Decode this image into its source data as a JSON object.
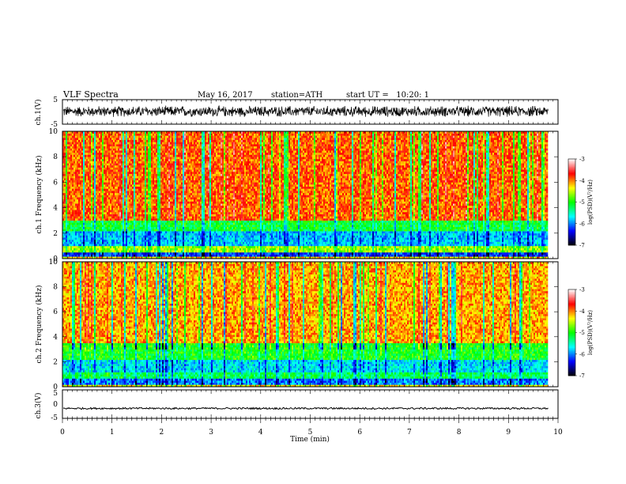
{
  "header": {
    "title": "VLF Spectra",
    "date": "May 16, 2017",
    "station": "station=ATH",
    "start": "start UT =   10:20: 1"
  },
  "chart_data": [
    {
      "type": "line",
      "name": "ch.1 waveform",
      "ylabel": "ch.1(V)",
      "ylim": [
        -5,
        5
      ],
      "yticks": [
        "5",
        "-5"
      ],
      "xlim": [
        0,
        10
      ],
      "data_extent": [
        0,
        9.8
      ],
      "amplitude_mean": 0.2,
      "amplitude_range": [
        -2.5,
        2.5
      ],
      "color": "#000000"
    },
    {
      "type": "heatmap",
      "name": "ch.1 spectrogram",
      "ylabel": "ch.1 Frequency (kHz)",
      "ylim": [
        0,
        10
      ],
      "yticks": [
        "0",
        "2",
        "4",
        "6",
        "8",
        "10"
      ],
      "xlim": [
        0,
        10
      ],
      "data_extent": [
        0,
        9.8
      ],
      "bands": [
        {
          "f_from": 0.0,
          "f_to": 0.15,
          "level": -4.2
        },
        {
          "f_from": 0.15,
          "f_to": 0.5,
          "level": -6.2
        },
        {
          "f_from": 0.5,
          "f_to": 1.0,
          "level": -4.6
        },
        {
          "f_from": 1.0,
          "f_to": 2.2,
          "level": -5.8
        },
        {
          "f_from": 2.2,
          "f_to": 3.0,
          "level": -5.1
        },
        {
          "f_from": 3.0,
          "f_to": 10.0,
          "level": -3.9
        }
      ],
      "colorbar": {
        "label": "log(PSD)(V²/Hz)",
        "range": [
          -7,
          -3
        ],
        "ticks": [
          "-3",
          "-4",
          "-5",
          "-6",
          "-7"
        ],
        "colors": [
          "#000000",
          "#0000ff",
          "#00ffff",
          "#00ff00",
          "#ffff00",
          "#ff0000",
          "#ffffff"
        ]
      }
    },
    {
      "type": "heatmap",
      "name": "ch.2 spectrogram",
      "ylabel": "ch.2 Frequency (kHz)",
      "ylim": [
        0,
        10
      ],
      "yticks": [
        "0",
        "2",
        "4",
        "6",
        "8",
        "10"
      ],
      "xlim": [
        0,
        10
      ],
      "data_extent": [
        0,
        9.8
      ],
      "bands": [
        {
          "f_from": 0.0,
          "f_to": 0.15,
          "level": -4.3
        },
        {
          "f_from": 0.15,
          "f_to": 0.6,
          "level": -6.0
        },
        {
          "f_from": 0.6,
          "f_to": 1.2,
          "level": -5.2
        },
        {
          "f_from": 1.2,
          "f_to": 2.2,
          "level": -5.7
        },
        {
          "f_from": 2.2,
          "f_to": 3.5,
          "level": -5.0
        },
        {
          "f_from": 3.5,
          "f_to": 10.0,
          "level": -4.1
        }
      ],
      "colorbar": {
        "label": "log(PSD)(V²/Hz)",
        "range": [
          -7,
          -3
        ],
        "ticks": [
          "-3",
          "-4",
          "-5",
          "-6",
          "-7"
        ],
        "colors": [
          "#000000",
          "#0000ff",
          "#00ffff",
          "#00ff00",
          "#ffff00",
          "#ff0000",
          "#ffffff"
        ]
      }
    },
    {
      "type": "line",
      "name": "ch.3 waveform",
      "ylabel": "ch.3(V)",
      "ylim": [
        -5,
        5
      ],
      "yticks": [
        "5",
        "0",
        "-5"
      ],
      "xlim": [
        0,
        10
      ],
      "data_extent": [
        0,
        9.8
      ],
      "amplitude_mean": -1.5,
      "amplitude_range": [
        -1.8,
        -1.2
      ],
      "color": "#000000"
    }
  ],
  "xaxis": {
    "label": "Time (min)",
    "range": [
      0,
      10
    ],
    "ticks": [
      "0",
      "1",
      "2",
      "3",
      "4",
      "5",
      "6",
      "7",
      "8",
      "9",
      "10"
    ]
  }
}
